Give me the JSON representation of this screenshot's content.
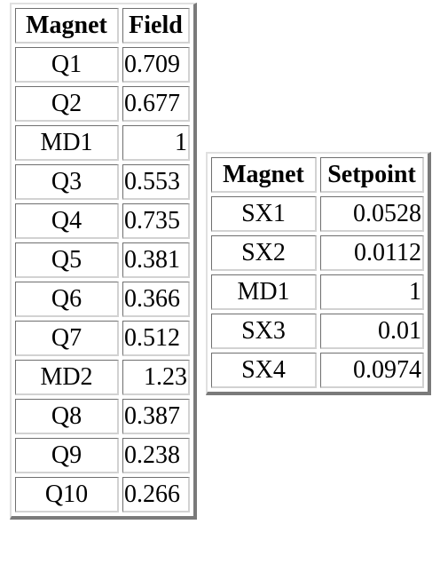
{
  "field_table": {
    "headers": [
      "Magnet",
      "Field"
    ],
    "rows": [
      {
        "magnet": "Q1",
        "value": "0.709"
      },
      {
        "magnet": "Q2",
        "value": "0.677"
      },
      {
        "magnet": "MD1",
        "value": "1"
      },
      {
        "magnet": "Q3",
        "value": "0.553"
      },
      {
        "magnet": "Q4",
        "value": "0.735"
      },
      {
        "magnet": "Q5",
        "value": "0.381"
      },
      {
        "magnet": "Q6",
        "value": "0.366"
      },
      {
        "magnet": "Q7",
        "value": "0.512"
      },
      {
        "magnet": "MD2",
        "value": "1.23"
      },
      {
        "magnet": "Q8",
        "value": "0.387"
      },
      {
        "magnet": "Q9",
        "value": "0.238"
      },
      {
        "magnet": "Q10",
        "value": "0.266"
      }
    ]
  },
  "setpoint_table": {
    "headers": [
      "Magnet",
      "Setpoint"
    ],
    "rows": [
      {
        "magnet": "SX1",
        "value": "0.0528"
      },
      {
        "magnet": "SX2",
        "value": "0.0112"
      },
      {
        "magnet": "MD1",
        "value": "1"
      },
      {
        "magnet": "SX3",
        "value": "0.01"
      },
      {
        "magnet": "SX4",
        "value": "0.0974"
      }
    ]
  }
}
